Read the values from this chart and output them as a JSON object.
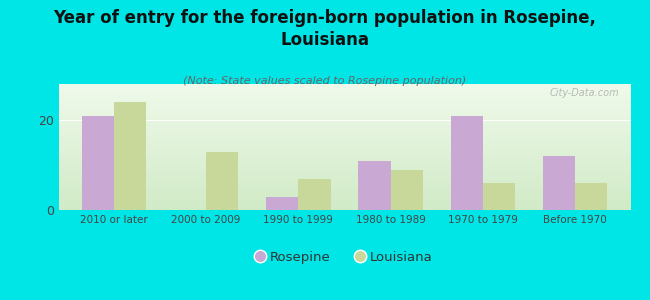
{
  "title": "Year of entry for the foreign-born population in Rosepine,\nLouisiana",
  "subtitle": "(Note: State values scaled to Rosepine population)",
  "categories": [
    "2010 or later",
    "2000 to 2009",
    "1990 to 1999",
    "1980 to 1989",
    "1970 to 1979",
    "Before 1970"
  ],
  "rosepine_values": [
    21,
    0,
    3,
    11,
    21,
    12
  ],
  "louisiana_values": [
    24,
    13,
    7,
    9,
    6,
    6
  ],
  "rosepine_color": "#c9a8d4",
  "louisiana_color": "#c8d89a",
  "background_color": "#00e5e5",
  "ylim": [
    0,
    28
  ],
  "yticks": [
    0,
    20
  ],
  "bar_width": 0.35,
  "title_fontsize": 12,
  "subtitle_fontsize": 8,
  "legend_labels": [
    "Rosepine",
    "Louisiana"
  ],
  "watermark": "City-Data.com"
}
